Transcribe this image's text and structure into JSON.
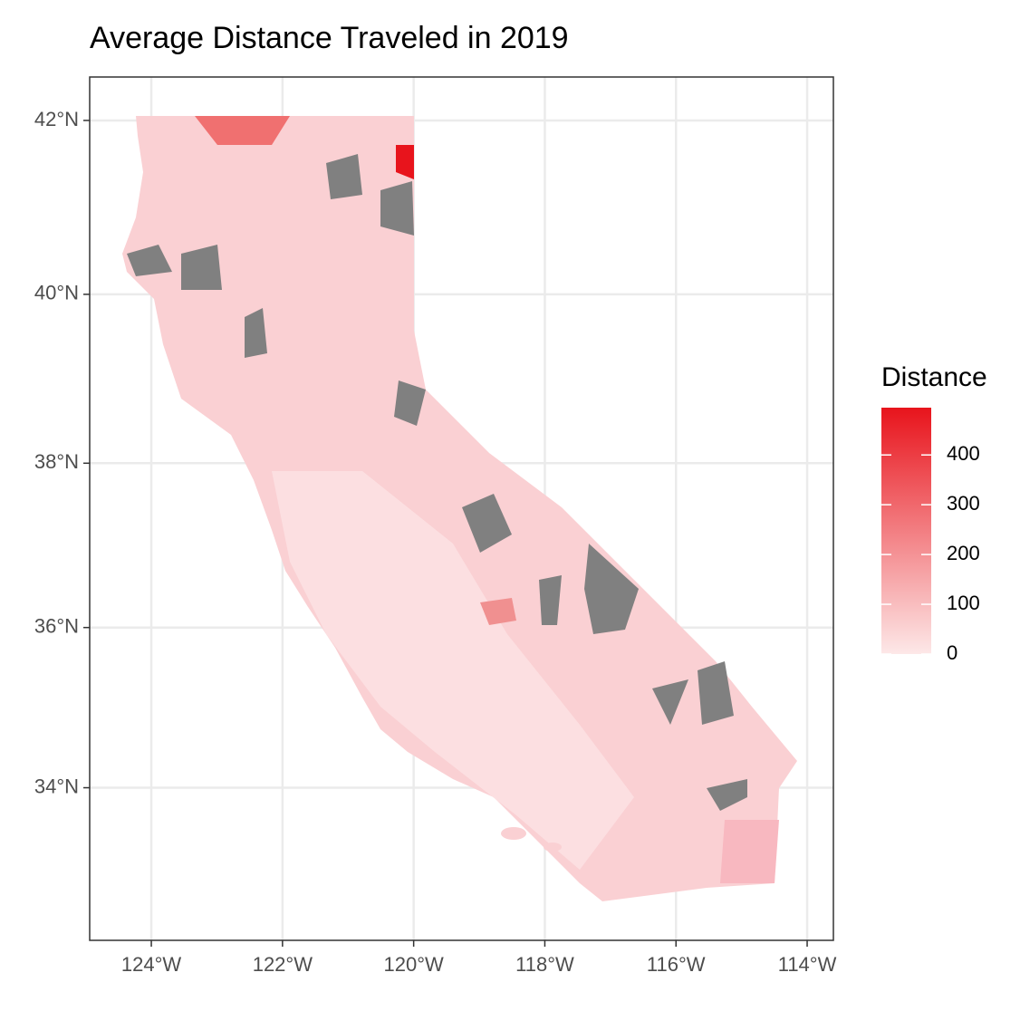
{
  "chart_data": {
    "type": "choropleth",
    "title": "Average Distance Traveled in 2019",
    "xlim": [
      -124.94,
      -113.6
    ],
    "ylim": [
      32.05,
      42.49
    ],
    "xticks": [
      {
        "value": -124,
        "label": "124°W"
      },
      {
        "value": -122,
        "label": "122°W"
      },
      {
        "value": -120,
        "label": "120°W"
      },
      {
        "value": -118,
        "label": "118°W"
      },
      {
        "value": -116,
        "label": "116°W"
      },
      {
        "value": -114,
        "label": "114°W"
      }
    ],
    "yticks": [
      {
        "value": 34,
        "label": "34°N"
      },
      {
        "value": 36,
        "label": "36°N"
      },
      {
        "value": 38,
        "label": "38°N"
      },
      {
        "value": 40,
        "label": "40°N"
      },
      {
        "value": 42,
        "label": "42°N"
      }
    ],
    "grid": true,
    "legend": {
      "title": "Distance",
      "limits": [
        0,
        495
      ],
      "ticks": [
        0,
        100,
        200,
        300,
        400
      ],
      "low_color": "#fde8e8",
      "high_color": "#e8141c"
    }
  }
}
